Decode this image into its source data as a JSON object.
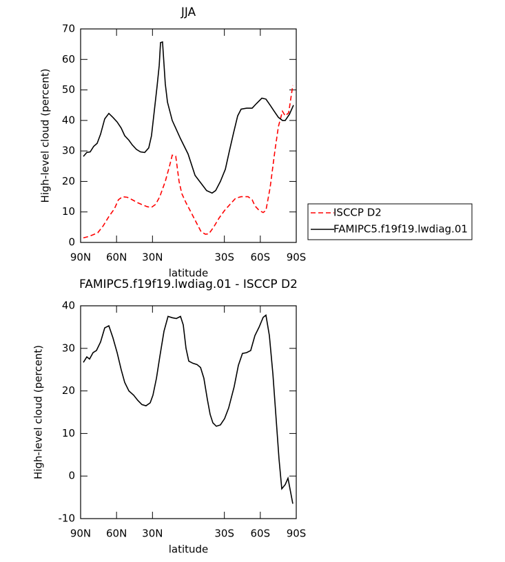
{
  "chart_data": [
    {
      "type": "line",
      "title": "JJA",
      "xlabel": "latitude",
      "ylabel": "High-level cloud (percent)",
      "xlim": [
        90,
        -90
      ],
      "ylim": [
        0,
        70
      ],
      "xticks": [
        {
          "value": 90,
          "label": "90N"
        },
        {
          "value": 60,
          "label": "60N"
        },
        {
          "value": 30,
          "label": "30N"
        },
        {
          "value": -30,
          "label": "30S"
        },
        {
          "value": -60,
          "label": "60S"
        },
        {
          "value": -90,
          "label": "90S"
        }
      ],
      "yticks": [
        0,
        10,
        20,
        30,
        40,
        50,
        60,
        70
      ],
      "legend": "right",
      "series": [
        {
          "name": "ISCCP D2",
          "color": "#ff0000",
          "linestyle": "dashed",
          "x": [
            87.7,
            83.7,
            79.6,
            75.6,
            71.0,
            66.4,
            61.8,
            58.4,
            54.9,
            50.9,
            46.9,
            42.3,
            38.2,
            34.2,
            30.8,
            27.3,
            23.9,
            19.3,
            15.8,
            13.5,
            10.6,
            7.8,
            5.5,
            2.0,
            -2.0,
            -6.6,
            -10.6,
            -14.1,
            -17.0,
            -21.0,
            -25.6,
            -30.2,
            -34.8,
            -39.4,
            -44.0,
            -49.8,
            -53.2,
            -55.5,
            -59.0,
            -62.4,
            -64.7,
            -68.2,
            -72.2,
            -75.1,
            -78.5,
            -80.8,
            -83.7,
            -87.1
          ],
          "values": [
            1.5,
            1.9,
            2.5,
            3.2,
            5.5,
            8.5,
            11,
            14,
            15,
            14.8,
            14,
            13,
            12.3,
            11.7,
            11.5,
            12.5,
            15,
            20,
            25,
            28.6,
            28.3,
            20,
            16,
            13,
            10,
            6.5,
            3.5,
            2.7,
            2.8,
            5,
            8,
            10.5,
            12.5,
            14.5,
            15,
            15,
            14,
            12,
            10.5,
            9.8,
            10.5,
            18,
            30,
            38,
            43,
            41.5,
            42.5,
            51.5
          ]
        },
        {
          "name": "FAMIPC5.f19f19.lwdiag.01",
          "color": "#000000",
          "linestyle": "solid",
          "x": [
            87.7,
            84.8,
            82.0,
            79.1,
            76.2,
            73.3,
            69.9,
            66.4,
            63.0,
            59.5,
            56.1,
            53.2,
            49.7,
            46.9,
            43.4,
            40.0,
            36.5,
            33.1,
            30.8,
            28.5,
            26.2,
            24.4,
            23.3,
            21.6,
            19.3,
            17.5,
            13.5,
            6.6,
            0.3,
            -5.5,
            -15.2,
            -19.8,
            -22.7,
            -26.7,
            -30.8,
            -34.2,
            -37.7,
            -41.1,
            -44.0,
            -48.6,
            -53.2,
            -56.7,
            -61.3,
            -64.7,
            -68.2,
            -71.6,
            -75.1,
            -78.5,
            -80.8,
            -84.3,
            -87.7
          ],
          "values": [
            28.2,
            29.5,
            29.7,
            31.5,
            32.5,
            35.5,
            40.5,
            42.3,
            41,
            39.5,
            37.5,
            35,
            33.5,
            32,
            30.5,
            29.7,
            29.5,
            31,
            35,
            43,
            51,
            58,
            65.5,
            65.7,
            52,
            46,
            40,
            34,
            29,
            22,
            17,
            16.2,
            17,
            20,
            24,
            30,
            36,
            41.5,
            43.7,
            44,
            44,
            45.5,
            47.3,
            47,
            45,
            43,
            41,
            40,
            40,
            42,
            45
          ]
        }
      ]
    },
    {
      "type": "line",
      "title": "FAMIPC5.f19f19.lwdiag.01 - ISCCP D2",
      "xlabel": "latitude",
      "ylabel": "High-level cloud (percent)",
      "xlim": [
        90,
        -90
      ],
      "ylim": [
        -10,
        40
      ],
      "xticks": [
        {
          "value": 90,
          "label": "90N"
        },
        {
          "value": 60,
          "label": "60N"
        },
        {
          "value": 30,
          "label": "30N"
        },
        {
          "value": -30,
          "label": "30S"
        },
        {
          "value": -60,
          "label": "60S"
        },
        {
          "value": -90,
          "label": "90S"
        }
      ],
      "yticks": [
        -10,
        0,
        10,
        20,
        30,
        40
      ],
      "series": [
        {
          "color": "#000000",
          "linestyle": "solid",
          "x": [
            87.7,
            84.8,
            82.5,
            79.6,
            76.8,
            73.3,
            69.9,
            66.4,
            63.0,
            59.5,
            56.1,
            53.2,
            49.7,
            45.7,
            42.3,
            38.8,
            35.4,
            31.9,
            29.6,
            26.7,
            23.9,
            20.4,
            17.0,
            13.5,
            10.1,
            6.6,
            4.3,
            2.0,
            -0.3,
            -3.7,
            -7.2,
            -10.1,
            -12.9,
            -15.8,
            -18.1,
            -20.4,
            -23.3,
            -26.7,
            -30.2,
            -33.6,
            -38.2,
            -41.7,
            -45.1,
            -48.6,
            -52.0,
            -55.5,
            -59.0,
            -62.4,
            -64.7,
            -67.6,
            -70.5,
            -73.3,
            -75.6,
            -77.9,
            -80.8,
            -83.1,
            -87.1
          ],
          "values": [
            26.7,
            28,
            27.5,
            29,
            29.5,
            31.5,
            34.8,
            35.3,
            32.5,
            29,
            25,
            22,
            20,
            19,
            17.8,
            16.8,
            16.5,
            17.2,
            19,
            23,
            28,
            34,
            37.5,
            37.2,
            37,
            37.5,
            35.5,
            30,
            27,
            26.5,
            26.2,
            25.5,
            23,
            18,
            14.5,
            12.5,
            11.7,
            12,
            13.5,
            16,
            21,
            26,
            28.8,
            29,
            29.5,
            33,
            35,
            37.3,
            37.8,
            33,
            24,
            13,
            4,
            -3,
            -2,
            -0.5,
            -6.5
          ]
        }
      ]
    }
  ]
}
